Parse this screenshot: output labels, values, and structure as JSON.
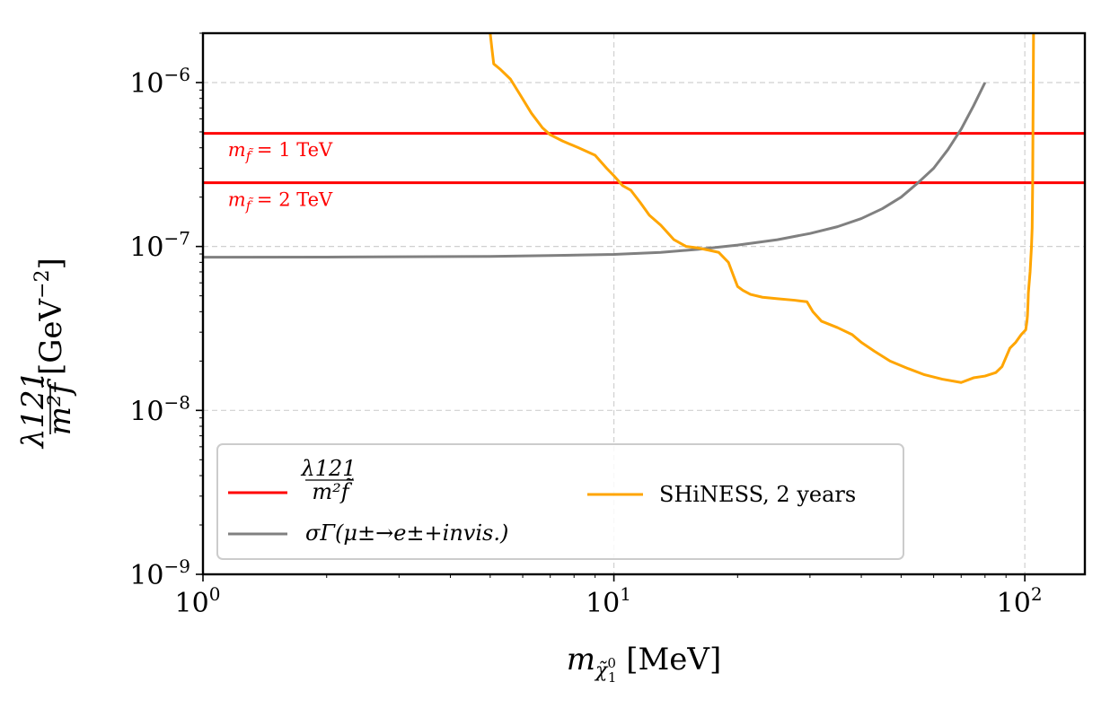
{
  "chart_data": {
    "type": "line",
    "xscale": "log",
    "yscale": "log",
    "xlim": [
      1,
      140
    ],
    "ylim": [
      1e-09,
      2e-06
    ],
    "xlabel": {
      "main": "m",
      "sub": "χ̃",
      "subsup": "0",
      "subsub": "1",
      "unit": "[MeV]"
    },
    "ylabel": {
      "numerator": "λ121",
      "denominator": "m²f̃",
      "unit": "[GeV",
      "unit_exp": "−2",
      "unit_close": "]"
    },
    "xticks": [
      {
        "value": 1,
        "base": "10",
        "exp": "0"
      },
      {
        "value": 10,
        "base": "10",
        "exp": "1"
      },
      {
        "value": 100,
        "base": "10",
        "exp": "2"
      }
    ],
    "yticks": [
      {
        "value": 1e-09,
        "base": "10",
        "exp": "−9"
      },
      {
        "value": 1e-08,
        "base": "10",
        "exp": "−8"
      },
      {
        "value": 1e-07,
        "base": "10",
        "exp": "−7"
      },
      {
        "value": 1e-06,
        "base": "10",
        "exp": "−6"
      }
    ],
    "grid": true,
    "series": [
      {
        "name": "λ121 / m²f̃ (m_f̃ = 1 TeV)",
        "color": "#ff0000",
        "kind": "hline",
        "y": 4.9e-07
      },
      {
        "name": "λ121 / m²f̃ (m_f̃ = 2 TeV)",
        "color": "#ff0000",
        "kind": "hline",
        "y": 2.45e-07
      },
      {
        "name": "σ Γ(μ± → e± + invis.)",
        "color": "#808080",
        "kind": "line",
        "x": [
          1,
          2,
          3,
          5,
          7,
          10,
          13,
          16,
          20,
          25,
          30,
          35,
          40,
          45,
          50,
          55,
          60,
          65,
          70,
          75,
          80
        ],
        "y": [
          8.6e-08,
          8.62e-08,
          8.65e-08,
          8.7e-08,
          8.8e-08,
          8.95e-08,
          9.2e-08,
          9.6e-08,
          1.02e-07,
          1.1e-07,
          1.2e-07,
          1.32e-07,
          1.48e-07,
          1.7e-07,
          2e-07,
          2.45e-07,
          3e-07,
          3.9e-07,
          5.2e-07,
          7.2e-07,
          1e-06
        ]
      },
      {
        "name": "SHiNESS, 2 years",
        "color": "#ffa500",
        "kind": "line",
        "x": [
          5.0,
          5.05,
          5.1,
          5.3,
          5.6,
          5.9,
          6.3,
          6.7,
          7.0,
          7.5,
          8.2,
          9.0,
          9.6,
          10.0,
          10.5,
          11.0,
          11.6,
          12.2,
          13.0,
          14.0,
          15.0,
          16.0,
          17.0,
          18.0,
          19.0,
          19.6,
          20.0,
          20.6,
          21.5,
          23.0,
          25.0,
          27.5,
          29.5,
          30.5,
          32.0,
          35.0,
          38.0,
          40.0,
          43.0,
          47.0,
          52.0,
          57.0,
          63.0,
          70.0,
          75.0,
          80.0,
          85.0,
          88.0,
          92.0,
          95.0,
          98.0,
          100.5,
          101.2,
          101.5,
          101.8,
          102.0,
          103.0,
          103.8,
          104.2,
          104.5,
          104.7,
          104.9,
          105.0
        ],
        "y": [
          2e-06,
          1.6e-06,
          1.3e-06,
          1.2e-06,
          1.05e-06,
          8.5e-07,
          6.5e-07,
          5.3e-07,
          4.8e-07,
          4.4e-07,
          4e-07,
          3.6e-07,
          3e-07,
          2.7e-07,
          2.35e-07,
          2.2e-07,
          1.85e-07,
          1.55e-07,
          1.35e-07,
          1.1e-07,
          1e-07,
          9.8e-08,
          9.5e-08,
          9.2e-08,
          8e-08,
          6.5e-08,
          5.7e-08,
          5.4e-08,
          5.1e-08,
          4.9e-08,
          4.8e-08,
          4.7e-08,
          4.6e-08,
          4e-08,
          3.5e-08,
          3.2e-08,
          2.9e-08,
          2.6e-08,
          2.3e-08,
          2e-08,
          1.8e-08,
          1.65e-08,
          1.55e-08,
          1.48e-08,
          1.58e-08,
          1.62e-08,
          1.7e-08,
          1.85e-08,
          2.4e-08,
          2.6e-08,
          2.9e-08,
          3.1e-08,
          3.5e-08,
          3.8e-08,
          4.5e-08,
          5.2e-08,
          7e-08,
          1e-07,
          1.3e-07,
          2.5e-07,
          6e-07,
          1.2e-06,
          2e-06
        ]
      }
    ],
    "annotations": [
      {
        "text": "= 1 TeV",
        "color": "#ff0000",
        "x": 1.15,
        "y": 3.55e-07
      },
      {
        "text": "= 2 TeV",
        "color": "#ff0000",
        "x": 1.15,
        "y": 1.77e-07
      }
    ],
    "legend": {
      "position": "lower-left",
      "entries": [
        {
          "label_num": "λ121",
          "label_den": "m²f̃",
          "color": "#ff0000"
        },
        {
          "label": "σΓ(μ±→e±+invis.)",
          "color": "#808080"
        },
        {
          "label": "SHiNESS, 2 years",
          "color": "#ffa500"
        }
      ]
    }
  }
}
